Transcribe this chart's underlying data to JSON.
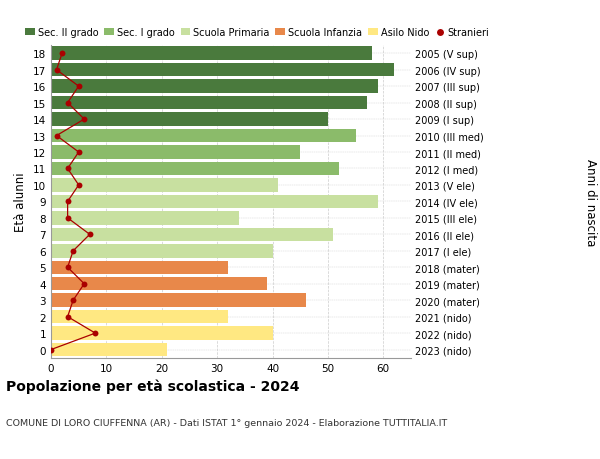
{
  "ages": [
    0,
    1,
    2,
    3,
    4,
    5,
    6,
    7,
    8,
    9,
    10,
    11,
    12,
    13,
    14,
    15,
    16,
    17,
    18
  ],
  "bar_values": [
    21,
    40,
    32,
    46,
    39,
    32,
    40,
    51,
    34,
    59,
    41,
    52,
    45,
    55,
    50,
    57,
    59,
    62,
    58
  ],
  "right_labels": [
    "2023 (nido)",
    "2022 (nido)",
    "2021 (nido)",
    "2020 (mater)",
    "2019 (mater)",
    "2018 (mater)",
    "2017 (I ele)",
    "2016 (II ele)",
    "2015 (III ele)",
    "2014 (IV ele)",
    "2013 (V ele)",
    "2012 (I med)",
    "2011 (II med)",
    "2010 (III med)",
    "2009 (I sup)",
    "2008 (II sup)",
    "2007 (III sup)",
    "2006 (IV sup)",
    "2005 (V sup)"
  ],
  "bar_colors": [
    "#FFE882",
    "#FFE882",
    "#FFE882",
    "#E8884A",
    "#E8884A",
    "#E8884A",
    "#C8E0A0",
    "#C8E0A0",
    "#C8E0A0",
    "#C8E0A0",
    "#C8E0A0",
    "#8BBB6A",
    "#8BBB6A",
    "#8BBB6A",
    "#4A7A3D",
    "#4A7A3D",
    "#4A7A3D",
    "#4A7A3D",
    "#4A7A3D"
  ],
  "stranieri_values": [
    0,
    8,
    3,
    4,
    6,
    3,
    4,
    7,
    3,
    3,
    5,
    3,
    5,
    1,
    6,
    3,
    5,
    1,
    2
  ],
  "legend_labels": [
    "Sec. II grado",
    "Sec. I grado",
    "Scuola Primaria",
    "Scuola Infanzia",
    "Asilo Nido",
    "Stranieri"
  ],
  "legend_colors": [
    "#4A7A3D",
    "#8BBB6A",
    "#C8E0A0",
    "#E8884A",
    "#FFE882",
    "#AA0000"
  ],
  "ylabel": "Età alunni",
  "right_ylabel": "Anni di nascita",
  "title": "Popolazione per età scolastica - 2024",
  "subtitle": "COMUNE DI LORO CIUFFENNA (AR) - Dati ISTAT 1° gennaio 2024 - Elaborazione TUTTITALIA.IT",
  "xlim": [
    0,
    65
  ],
  "xticks": [
    0,
    10,
    20,
    30,
    40,
    50,
    60
  ],
  "background_color": "#FFFFFF",
  "grid_color": "#CCCCCC"
}
